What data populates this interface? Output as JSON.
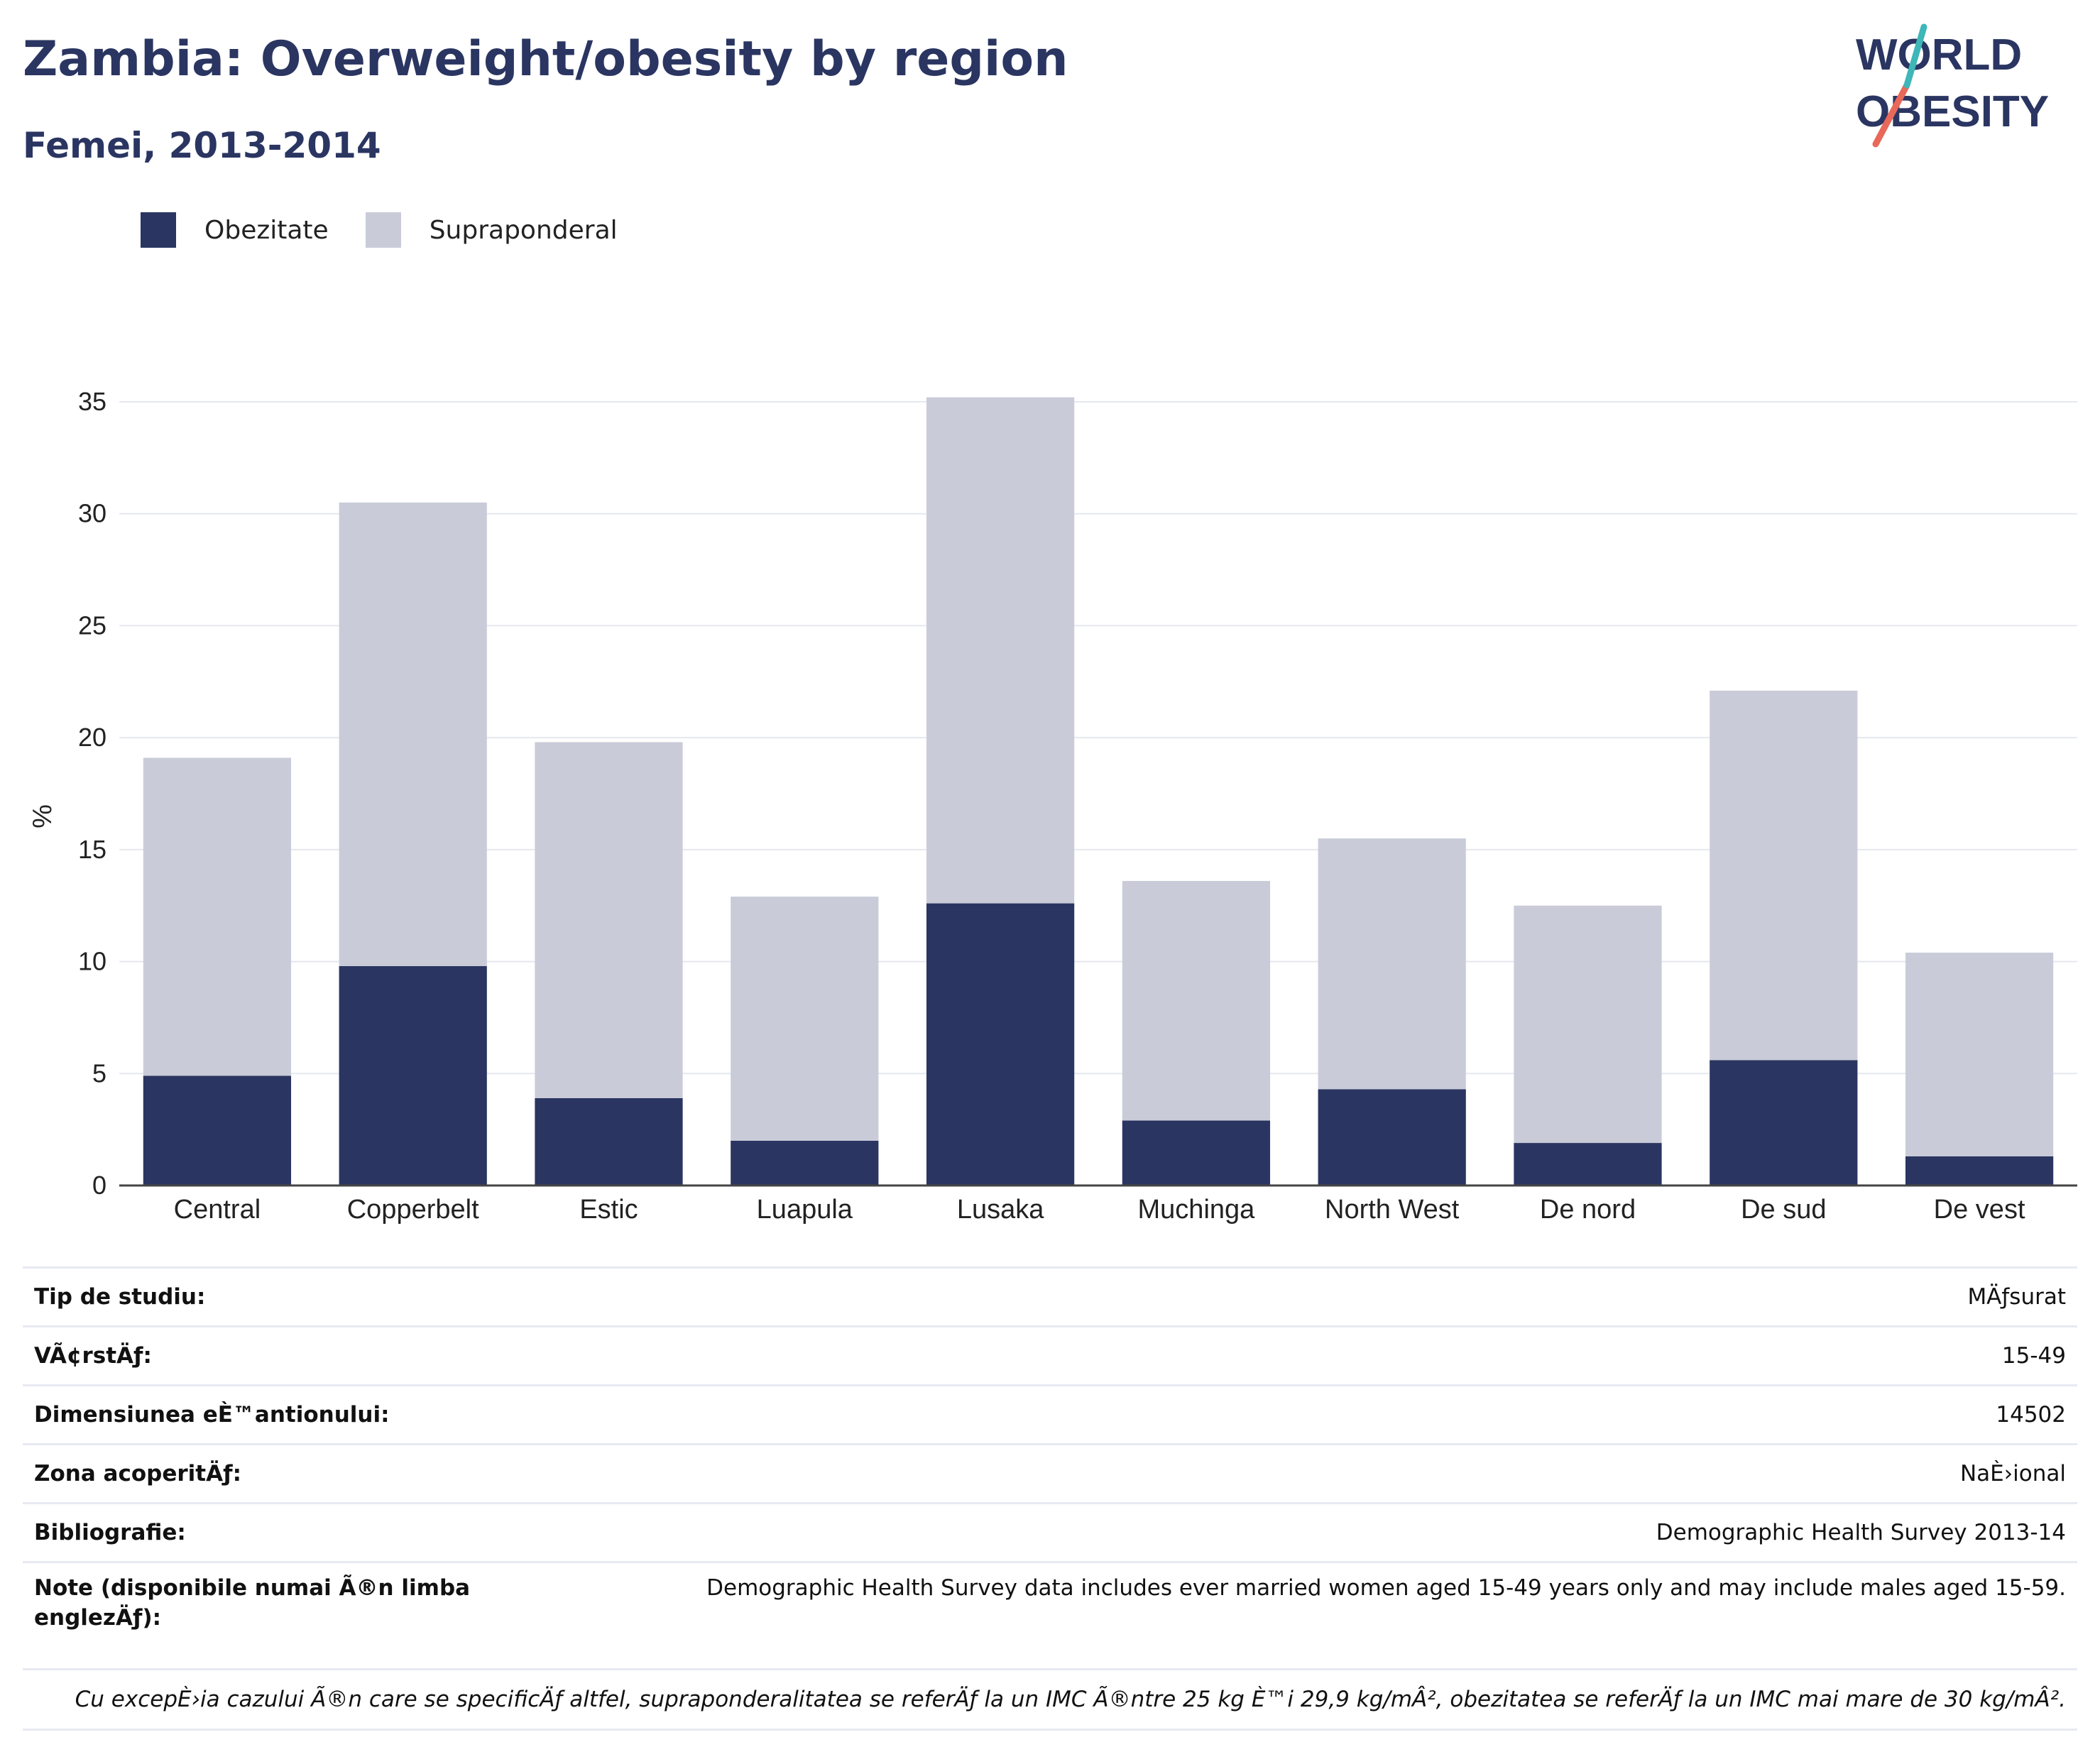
{
  "header": {
    "title": "Zambia: Overweight/obesity by region",
    "subtitle": "Femei, 2013-2014"
  },
  "logo": {
    "line1": "WORLD",
    "line2": "OBESITY",
    "colors": {
      "text": "#2a3561",
      "slash_red": "#e8685a",
      "slash_teal": "#3fb6b8"
    }
  },
  "legend": [
    {
      "label": "Obezitate",
      "color": "#2a3561"
    },
    {
      "label": "Supraponderal",
      "color": "#c9ccd8"
    }
  ],
  "chart_data": {
    "type": "bar",
    "stacked": true,
    "categories": [
      "Central",
      "Copperbelt",
      "Estic",
      "Luapula",
      "Lusaka",
      "Muchinga",
      "North West",
      "De nord",
      "De sud",
      "De vest"
    ],
    "series": [
      {
        "name": "Obezitate",
        "color": "#2a3561",
        "values": [
          4.9,
          9.8,
          3.9,
          2.0,
          12.6,
          2.9,
          4.3,
          1.9,
          5.6,
          1.3
        ]
      },
      {
        "name": "Supraponderal",
        "color": "#c9ccd8",
        "values": [
          14.2,
          20.7,
          15.9,
          10.9,
          22.6,
          10.7,
          11.2,
          10.6,
          16.5,
          9.1
        ]
      }
    ],
    "title": "Zambia: Overweight/obesity by region",
    "subtitle": "Femei, 2013-2014",
    "ylabel": "%",
    "xlabel": "",
    "ylim": [
      0,
      35
    ],
    "yticks": [
      0,
      5,
      10,
      15,
      20,
      25,
      30,
      35
    ],
    "grid": true,
    "legend_position": "top-left"
  },
  "info": {
    "rows": [
      {
        "label": "Tip de studiu:",
        "value": "MÄƒsurat"
      },
      {
        "label": "VÃ¢rstÄƒ:",
        "value": "15-49"
      },
      {
        "label": "Dimensiunea eÈ™antionului:",
        "value": "14502"
      },
      {
        "label": "Zona acoperitÄƒ:",
        "value": "NaÈ›ional"
      },
      {
        "label": "Bibliografie:",
        "value": "Demographic Health Survey 2013-14"
      }
    ],
    "notes": {
      "label": "Note (disponibile numai Ã®n limba englezÄƒ):",
      "value": "Demographic Health Survey data includes ever married women aged 15-49 years only and may include males aged 15-59."
    },
    "footnote": "Cu excepÈ›ia cazului Ã®n care se specificÄƒ altfel, supraponderalitatea se referÄƒ la un IMC Ã®ntre 25 kg È™i 29,9 kg/mÂ², obezitatea se referÄƒ la un IMC mai mare de 30 kg/mÂ²."
  }
}
